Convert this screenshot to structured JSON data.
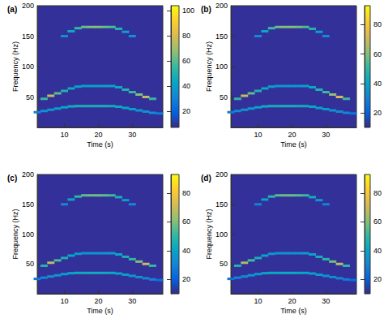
{
  "chart_data": [
    {
      "type": "heatmap",
      "title": "(a)",
      "xlabel": "Time (s)",
      "ylabel": "Frequency (Hz)",
      "xlim": [
        2,
        39
      ],
      "xticks": [
        10,
        20,
        30
      ],
      "ylim": [
        0,
        200
      ],
      "yticks": [
        50,
        100,
        150,
        200
      ],
      "colorbar_lim": [
        7,
        104
      ],
      "colorbar_ticks": [
        20,
        40,
        60,
        80,
        100
      ],
      "cells": [
        [
          2,
          25,
          30
        ],
        [
          4,
          27,
          35
        ],
        [
          6,
          29,
          38
        ],
        [
          8,
          31,
          40
        ],
        [
          10,
          33,
          42
        ],
        [
          12,
          34.5,
          45
        ],
        [
          14,
          35,
          48
        ],
        [
          16,
          35,
          48
        ],
        [
          18,
          35,
          48
        ],
        [
          20,
          35,
          48
        ],
        [
          22,
          35,
          48
        ],
        [
          24,
          35,
          46
        ],
        [
          26,
          34,
          44
        ],
        [
          28,
          32,
          42
        ],
        [
          30,
          30,
          40
        ],
        [
          32,
          28,
          38
        ],
        [
          34,
          26,
          36
        ],
        [
          36,
          24,
          34
        ],
        [
          38,
          23,
          28
        ],
        [
          4,
          47,
          55
        ],
        [
          6,
          52,
          75
        ],
        [
          8,
          56,
          60
        ],
        [
          10,
          60,
          50
        ],
        [
          12,
          64,
          45
        ],
        [
          14,
          67,
          42
        ],
        [
          16,
          68,
          40
        ],
        [
          18,
          68,
          40
        ],
        [
          20,
          68,
          40
        ],
        [
          22,
          68,
          40
        ],
        [
          24,
          68,
          42
        ],
        [
          26,
          66,
          45
        ],
        [
          28,
          62,
          50
        ],
        [
          30,
          58,
          55
        ],
        [
          32,
          54,
          65
        ],
        [
          34,
          50,
          75
        ],
        [
          36,
          47,
          55
        ],
        [
          10,
          150,
          35
        ],
        [
          12,
          158,
          45
        ],
        [
          14,
          163,
          55
        ],
        [
          16,
          165,
          62
        ],
        [
          18,
          165,
          65
        ],
        [
          20,
          165,
          65
        ],
        [
          22,
          165,
          62
        ],
        [
          24,
          165,
          58
        ],
        [
          26,
          162,
          50
        ],
        [
          28,
          157,
          42
        ],
        [
          30,
          150,
          35
        ]
      ]
    },
    {
      "type": "heatmap",
      "title": "(b)",
      "xlabel": "Time (s)",
      "ylabel": "Frequency (Hz)",
      "xlim": [
        2,
        39
      ],
      "xticks": [
        10,
        20,
        30
      ],
      "ylim": [
        0,
        200
      ],
      "yticks": [
        50,
        100,
        150,
        200
      ],
      "colorbar_lim": [
        10,
        93
      ],
      "colorbar_ticks": [
        20,
        40,
        60,
        80
      ],
      "cells": [
        [
          2,
          25,
          28
        ],
        [
          4,
          27,
          32
        ],
        [
          6,
          29,
          35
        ],
        [
          8,
          31,
          37
        ],
        [
          10,
          33,
          39
        ],
        [
          12,
          34.5,
          42
        ],
        [
          14,
          35,
          44
        ],
        [
          16,
          35,
          44
        ],
        [
          18,
          35,
          45
        ],
        [
          20,
          35,
          45
        ],
        [
          22,
          35,
          44
        ],
        [
          24,
          35,
          43
        ],
        [
          26,
          34,
          41
        ],
        [
          28,
          32,
          39
        ],
        [
          30,
          30,
          37
        ],
        [
          32,
          28,
          35
        ],
        [
          34,
          26,
          33
        ],
        [
          36,
          24,
          31
        ],
        [
          38,
          23,
          26
        ],
        [
          4,
          47,
          50
        ],
        [
          6,
          52,
          70
        ],
        [
          8,
          56,
          56
        ],
        [
          10,
          60,
          47
        ],
        [
          12,
          64,
          42
        ],
        [
          14,
          67,
          39
        ],
        [
          16,
          68,
          37
        ],
        [
          18,
          68,
          37
        ],
        [
          20,
          68,
          37
        ],
        [
          22,
          68,
          37
        ],
        [
          24,
          68,
          39
        ],
        [
          26,
          66,
          42
        ],
        [
          28,
          62,
          47
        ],
        [
          30,
          58,
          52
        ],
        [
          32,
          54,
          62
        ],
        [
          34,
          50,
          72
        ],
        [
          36,
          47,
          52
        ],
        [
          10,
          150,
          32
        ],
        [
          12,
          158,
          42
        ],
        [
          14,
          163,
          52
        ],
        [
          16,
          165,
          58
        ],
        [
          18,
          165,
          60
        ],
        [
          20,
          165,
          60
        ],
        [
          22,
          165,
          58
        ],
        [
          24,
          165,
          54
        ],
        [
          26,
          162,
          47
        ],
        [
          28,
          157,
          39
        ],
        [
          30,
          150,
          32
        ]
      ]
    },
    {
      "type": "heatmap",
      "title": "(c)",
      "xlabel": "Time (s)",
      "ylabel": "Frequency (Hz)",
      "xlim": [
        2,
        39
      ],
      "xticks": [
        10,
        20,
        30
      ],
      "ylim": [
        0,
        200
      ],
      "yticks": [
        50,
        100,
        150,
        200
      ],
      "colorbar_lim": [
        10,
        93
      ],
      "colorbar_ticks": [
        20,
        40,
        60,
        80
      ],
      "cells": [
        [
          2,
          25,
          27
        ],
        [
          4,
          27,
          31
        ],
        [
          6,
          29,
          34
        ],
        [
          8,
          31,
          36
        ],
        [
          10,
          33,
          38
        ],
        [
          12,
          34.5,
          41
        ],
        [
          14,
          35,
          43
        ],
        [
          16,
          35,
          43
        ],
        [
          18,
          35,
          44
        ],
        [
          20,
          35,
          44
        ],
        [
          22,
          35,
          43
        ],
        [
          24,
          35,
          42
        ],
        [
          26,
          34,
          40
        ],
        [
          28,
          32,
          38
        ],
        [
          30,
          30,
          36
        ],
        [
          32,
          28,
          34
        ],
        [
          34,
          26,
          32
        ],
        [
          36,
          24,
          30
        ],
        [
          38,
          23,
          25
        ],
        [
          4,
          47,
          48
        ],
        [
          6,
          52,
          68
        ],
        [
          8,
          56,
          54
        ],
        [
          10,
          60,
          46
        ],
        [
          12,
          64,
          41
        ],
        [
          14,
          67,
          38
        ],
        [
          16,
          68,
          36
        ],
        [
          18,
          68,
          36
        ],
        [
          20,
          68,
          36
        ],
        [
          22,
          68,
          36
        ],
        [
          24,
          68,
          38
        ],
        [
          26,
          66,
          41
        ],
        [
          28,
          62,
          46
        ],
        [
          30,
          58,
          50
        ],
        [
          32,
          54,
          60
        ],
        [
          34,
          50,
          70
        ],
        [
          36,
          47,
          50
        ],
        [
          10,
          150,
          31
        ],
        [
          12,
          158,
          41
        ],
        [
          14,
          163,
          50
        ],
        [
          16,
          165,
          56
        ],
        [
          18,
          165,
          58
        ],
        [
          20,
          165,
          58
        ],
        [
          22,
          165,
          56
        ],
        [
          24,
          165,
          52
        ],
        [
          26,
          162,
          45
        ],
        [
          28,
          157,
          38
        ],
        [
          30,
          150,
          31
        ]
      ]
    },
    {
      "type": "heatmap",
      "title": "(d)",
      "xlabel": "Time (s)",
      "ylabel": "Frequency (Hz)",
      "xlim": [
        2,
        39
      ],
      "xticks": [
        10,
        20,
        30
      ],
      "ylim": [
        0,
        200
      ],
      "yticks": [
        50,
        100,
        150,
        200
      ],
      "colorbar_lim": [
        10,
        93
      ],
      "colorbar_ticks": [
        20,
        40,
        60,
        80
      ],
      "cells": [
        [
          2,
          25,
          26
        ],
        [
          4,
          27,
          30
        ],
        [
          6,
          29,
          33
        ],
        [
          8,
          31,
          35
        ],
        [
          10,
          33,
          37
        ],
        [
          12,
          34.5,
          40
        ],
        [
          14,
          35,
          42
        ],
        [
          16,
          35,
          42
        ],
        [
          18,
          35,
          43
        ],
        [
          20,
          35,
          43
        ],
        [
          22,
          35,
          42
        ],
        [
          24,
          35,
          41
        ],
        [
          26,
          34,
          39
        ],
        [
          28,
          32,
          37
        ],
        [
          30,
          30,
          35
        ],
        [
          32,
          28,
          33
        ],
        [
          34,
          26,
          31
        ],
        [
          36,
          24,
          29
        ],
        [
          38,
          23,
          24
        ],
        [
          4,
          47,
          47
        ],
        [
          6,
          52,
          66
        ],
        [
          8,
          56,
          53
        ],
        [
          10,
          60,
          45
        ],
        [
          12,
          64,
          40
        ],
        [
          14,
          67,
          37
        ],
        [
          16,
          68,
          35
        ],
        [
          18,
          68,
          35
        ],
        [
          20,
          68,
          35
        ],
        [
          22,
          68,
          35
        ],
        [
          24,
          68,
          37
        ],
        [
          26,
          66,
          40
        ],
        [
          28,
          62,
          45
        ],
        [
          30,
          58,
          49
        ],
        [
          32,
          54,
          58
        ],
        [
          34,
          50,
          68
        ],
        [
          36,
          47,
          49
        ],
        [
          10,
          150,
          30
        ],
        [
          12,
          158,
          40
        ],
        [
          14,
          163,
          49
        ],
        [
          16,
          165,
          55
        ],
        [
          18,
          165,
          57
        ],
        [
          20,
          165,
          57
        ],
        [
          22,
          165,
          55
        ],
        [
          24,
          165,
          51
        ],
        [
          26,
          162,
          44
        ],
        [
          28,
          157,
          37
        ],
        [
          30,
          150,
          30
        ]
      ]
    }
  ]
}
